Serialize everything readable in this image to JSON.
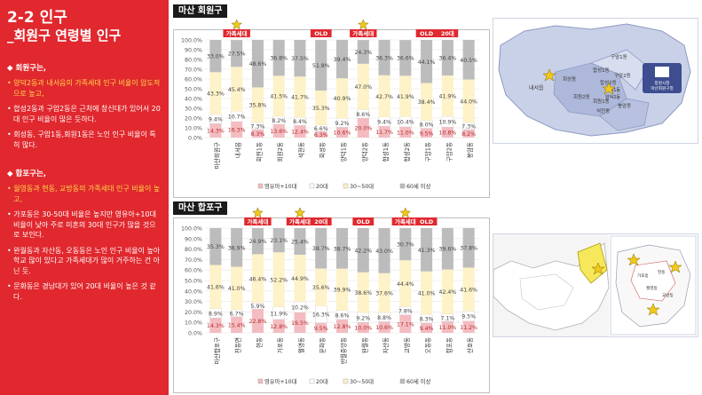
{
  "left": {
    "title1": "2-2 인구",
    "title2": "_회원구 연령별 인구",
    "sec1": "◆ 회원구는,",
    "sec1_bullets": [
      {
        "text": "• 양덕2동과 내서읍의 가족세대 인구 비율이 압도적으로 높고,",
        "hl": true
      },
      {
        "text": "• 합성2동과 구암2동은 근처에 창신대가 있어서 20대 인구 비율이 많은 듯하다.",
        "hl": false
      },
      {
        "text": "• 회성동, 구암1동,회원1동은 노인 인구 비율이 특히 많다.",
        "hl": false
      }
    ],
    "sec2": "◆ 합포구는,",
    "sec2_bullets": [
      {
        "text": "• 월영동과 현동, 교방동의 가족세대 인구 비율이 높고,",
        "hl": true
      },
      {
        "text": "• 가포동은 30-50대 비율은 높지만 영유아+10대 비율이 낮아 주로 미혼의 30대 인구가 많을 것으로 보인다.",
        "hl": false
      },
      {
        "text": "• 완월동과 자산동, 오동동은 노인 인구 비율이 높아 학교 많이 있다고 가족세대가 많이 거주하는 건 아닌 듯.",
        "hl": false
      },
      {
        "text": "• 문화동은 경남대가 있어 20대 비율이 높은 것 같다.",
        "hl": false
      }
    ]
  },
  "legend_labels": [
    "영유아+10대",
    "20대",
    "30~50대",
    "60세 이상"
  ],
  "colors": {
    "s0": "#f4bcc1",
    "s1": "#ffffff",
    "s2": "#fdf2c8",
    "s3": "#bdbcbd",
    "red_tag": "#e0282e",
    "star": "#f2c81a"
  },
  "charts": [
    {
      "title": "마산 회원구",
      "yticks": [
        "0.0%",
        "10.0%",
        "20.0%",
        "30.0%",
        "40.0%",
        "50.0%",
        "60.0%",
        "70.0%",
        "80.0%",
        "90.0%",
        "100.0%"
      ]
    },
    {
      "title": "마산 합포구",
      "yticks": [
        "0.0%",
        "10.0%",
        "20.0%",
        "30.0%",
        "40.0%",
        "50.0%",
        "60.0%",
        "70.0%",
        "80.0%",
        "90.0%",
        "100.0%"
      ]
    }
  ],
  "chart_data": [
    {
      "type": "bar",
      "stacked": true,
      "title": "마산 회원구",
      "ylim": [
        0,
        100
      ],
      "categories": [
        "마산회원구",
        "내서읍",
        "회원1동",
        "회원2동",
        "석전동",
        "회성동",
        "양덕1동",
        "양덕2동",
        "합성1동",
        "합성2동",
        "구암1동",
        "구암2동",
        "봉암동"
      ],
      "series": [
        {
          "name": "영유아+10대",
          "values": [
            14.3,
            16.3,
            8.3,
            13.6,
            12.4,
            6.3,
            10.6,
            20.0,
            11.7,
            11.0,
            9.5,
            10.8,
            8.2
          ]
        },
        {
          "name": "20대",
          "values": [
            9.4,
            10.7,
            7.3,
            8.2,
            8.4,
            6.6,
            9.2,
            8.6,
            9.4,
            10.4,
            8.0,
            10.9,
            7.3
          ]
        },
        {
          "name": "30~50대",
          "values": [
            43.3,
            45.4,
            35.8,
            41.5,
            41.7,
            35.3,
            40.9,
            47.0,
            42.7,
            41.9,
            38.4,
            41.9,
            44.0
          ]
        },
        {
          "name": "60세 이상",
          "values": [
            33.0,
            27.5,
            48.6,
            36.8,
            37.5,
            51.8,
            39.4,
            24.3,
            36.3,
            36.6,
            44.1,
            36.4,
            40.5
          ]
        }
      ],
      "tags": [
        {
          "category": "내서읍",
          "text": "가족세대",
          "star": true
        },
        {
          "category": "회성동",
          "text": "OLD",
          "star": false
        },
        {
          "category": "양덕2동",
          "text": "가족세대",
          "star": true
        },
        {
          "category": "구암1동",
          "text": "OLD",
          "star": false
        },
        {
          "category": "구암2동",
          "text": "20대",
          "star": false
        }
      ]
    },
    {
      "type": "bar",
      "stacked": true,
      "title": "마산 합포구",
      "ylim": [
        0,
        100
      ],
      "categories": [
        "마산합포구",
        "진동면",
        "현동",
        "가포동",
        "월영동",
        "문화동",
        "반월중앙동",
        "완월동",
        "자산동",
        "교방동",
        "오동동",
        "합포동",
        "산호동"
      ],
      "series": [
        {
          "name": "영유아+10대",
          "values": [
            14.3,
            15.4,
            22.8,
            12.8,
            19.5,
            9.5,
            12.8,
            10.0,
            10.6,
            17.1,
            9.4,
            11.0,
            11.2
          ]
        },
        {
          "name": "20대",
          "values": [
            8.9,
            6.7,
            5.9,
            11.9,
            10.2,
            16.3,
            8.6,
            9.2,
            8.8,
            7.8,
            8.3,
            7.1,
            9.5
          ]
        },
        {
          "name": "30~50대",
          "values": [
            41.6,
            41.0,
            46.4,
            52.2,
            44.9,
            35.6,
            39.9,
            38.6,
            37.6,
            44.4,
            41.0,
            42.4,
            41.6
          ]
        },
        {
          "name": "60세 이상",
          "values": [
            35.3,
            36.9,
            24.9,
            23.1,
            25.4,
            38.7,
            38.7,
            42.2,
            43.0,
            30.7,
            41.3,
            39.6,
            37.8
          ]
        }
      ],
      "tags": [
        {
          "category": "현동",
          "text": "가족세대",
          "star": true
        },
        {
          "category": "월영동",
          "text": "가족세대",
          "star": true
        },
        {
          "category": "문화동",
          "text": "20대",
          "star": false
        },
        {
          "category": "완월동",
          "text": "OLD",
          "star": false
        },
        {
          "category": "교방동",
          "text": "가족세대",
          "star": true
        },
        {
          "category": "오동동",
          "text": "OLD",
          "star": false
        }
      ]
    }
  ],
  "map_top": {
    "districts": [
      "내서읍",
      "회성동",
      "회원2동",
      "회원1동",
      "합성1동",
      "합성2동",
      "구암1동",
      "구암2동",
      "양덕1동",
      "양덕2동",
      "봉암동",
      "석전동"
    ],
    "office_label": "창원시청\n마산회원구청"
  },
  "map_bot": {
    "labels": [
      "가포동",
      "월영동",
      "현동",
      "교방동"
    ]
  }
}
